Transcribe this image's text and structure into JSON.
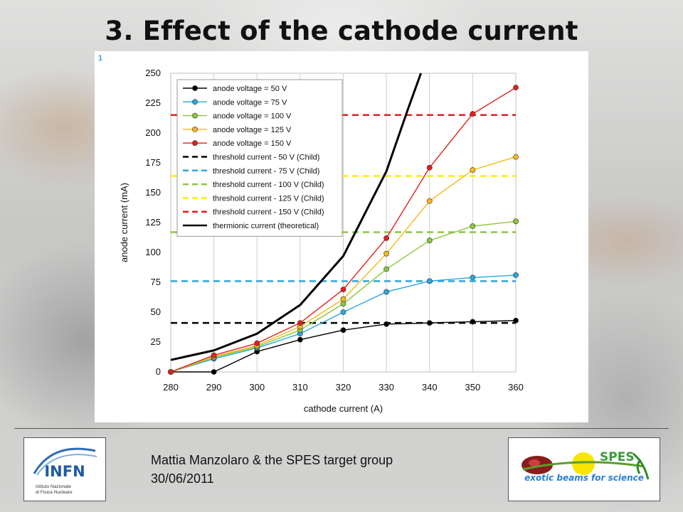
{
  "slide": {
    "title": "3. Effect of the cathode current",
    "panel_number": "1",
    "author": "Mattia Manzolaro & the SPES target group",
    "date": "30/06/2011",
    "logo_left": {
      "name": "INFN",
      "subtitle_line1": "Istituto Nazionale",
      "subtitle_line2": "di Fisica Nucleare"
    },
    "logo_right": {
      "name": "SPES",
      "tagline": "exotic beams for science"
    }
  },
  "chart_data": {
    "type": "line",
    "xlabel": "cathode current (A)",
    "ylabel": "anode current (mA)",
    "xlim": [
      280,
      360
    ],
    "ylim": [
      0,
      250
    ],
    "x_ticks": [
      280,
      290,
      300,
      310,
      320,
      330,
      340,
      350,
      360
    ],
    "y_ticks": [
      0,
      25,
      50,
      75,
      100,
      125,
      150,
      175,
      200,
      225,
      250
    ],
    "grid": "vertical",
    "legend_position": "top-left",
    "x": [
      280,
      290,
      300,
      310,
      320,
      330,
      340,
      350,
      360
    ],
    "series": [
      {
        "name": "anode voltage = 50 V",
        "color": "#000000",
        "style": "line-marker",
        "values": [
          0,
          0,
          17,
          27,
          35,
          40,
          41,
          42,
          43
        ]
      },
      {
        "name": "anode voltage = 75 V",
        "color": "#29a8e0",
        "style": "line-marker",
        "values": [
          0,
          11,
          20,
          32,
          50,
          67,
          76,
          79,
          81
        ]
      },
      {
        "name": "anode voltage = 100 V",
        "color": "#8cc63f",
        "style": "line-marker",
        "values": [
          0,
          12,
          21,
          35,
          57,
          86,
          110,
          122,
          126
        ]
      },
      {
        "name": "anode voltage = 125 V",
        "color": "#f5b81c",
        "style": "line-marker",
        "values": [
          0,
          13,
          22,
          38,
          61,
          99,
          143,
          169,
          180
        ]
      },
      {
        "name": "anode voltage = 150 V",
        "color": "#e3201b",
        "style": "line-marker",
        "values": [
          0,
          14,
          24,
          41,
          69,
          112,
          171,
          216,
          238
        ]
      }
    ],
    "thresholds": [
      {
        "name": "threshold current - 50 V (Child)",
        "color": "#000000",
        "value": 41
      },
      {
        "name": "threshold current - 75 V (Child)",
        "color": "#29a8e0",
        "value": 76
      },
      {
        "name": "threshold current - 100 V (Child)",
        "color": "#8cc63f",
        "value": 117
      },
      {
        "name": "threshold current - 125 V (Child)",
        "color": "#ffee00",
        "value": 164
      },
      {
        "name": "threshold current - 150 V (Child)",
        "color": "#e3201b",
        "value": 215
      }
    ],
    "theoretical": {
      "name": "thermionic current (theoretical)",
      "color": "#000000",
      "x": [
        280,
        290,
        300,
        310,
        320,
        330,
        335,
        338
      ],
      "values": [
        10,
        18,
        32,
        56,
        97,
        168,
        220,
        250
      ]
    }
  }
}
